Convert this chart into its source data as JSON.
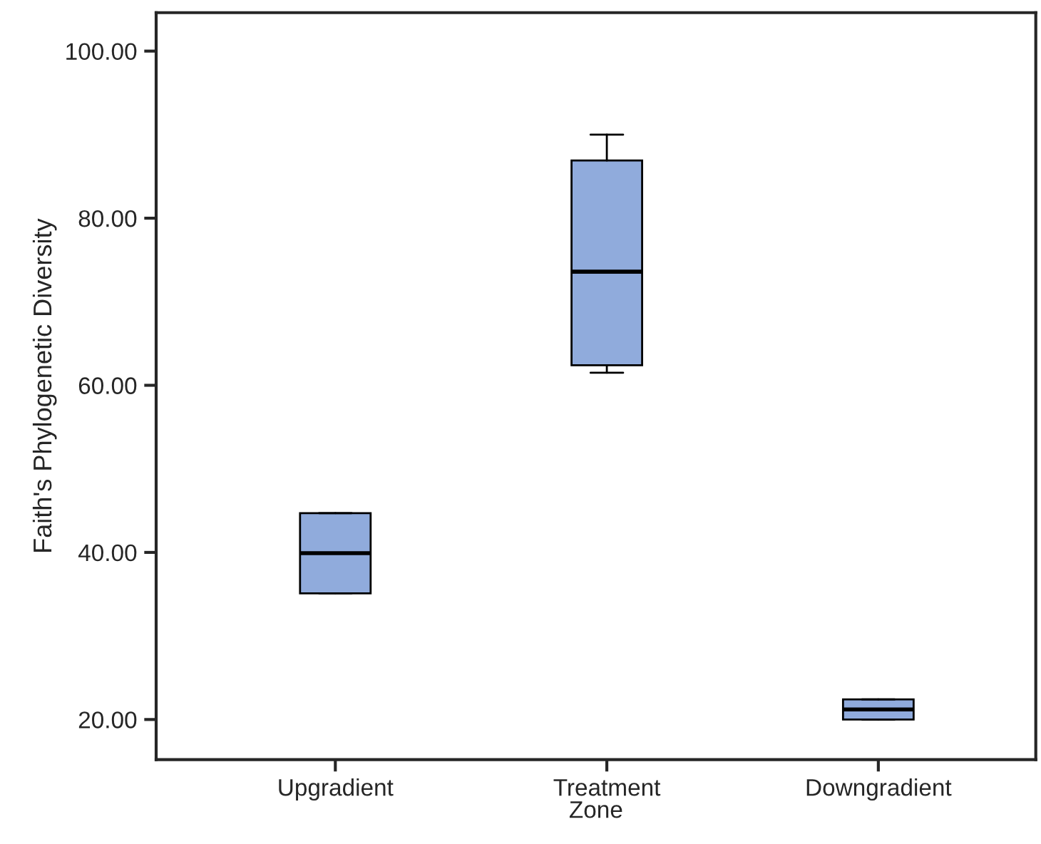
{
  "chart_data": {
    "type": "box",
    "xlabel": "Zone",
    "ylabel": "Faith's Phylogenetic Diversity",
    "categories": [
      "Upgradient",
      "Treatment",
      "Downgradient"
    ],
    "boxes": [
      {
        "low": 35.1,
        "q1": 35.1,
        "median": 39.9,
        "q3": 44.7,
        "high": 44.7
      },
      {
        "low": 61.5,
        "q1": 62.4,
        "median": 73.6,
        "q3": 86.9,
        "high": 90.0
      },
      {
        "low": 20.0,
        "q1": 20.0,
        "median": 21.2,
        "q3": 22.4,
        "high": 22.4
      }
    ],
    "color": "#90abdc",
    "ylim": [
      15.2,
      104.6
    ],
    "yticks": [
      {
        "value": 20,
        "label": "20.00"
      },
      {
        "value": 40,
        "label": "40.00"
      },
      {
        "value": 60,
        "label": "60.00"
      },
      {
        "value": 80,
        "label": "80.00"
      },
      {
        "value": 100,
        "label": "100.00"
      }
    ],
    "grid": false,
    "legend": false
  }
}
